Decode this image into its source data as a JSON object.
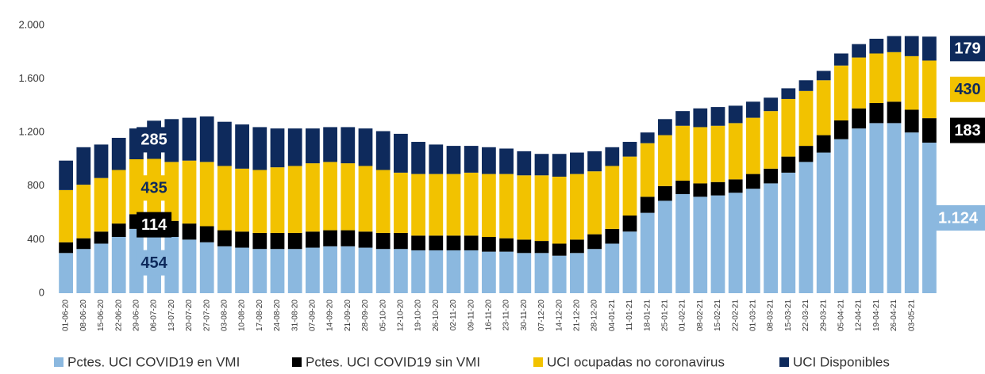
{
  "chart_data": {
    "type": "stacked_bar",
    "categories": [
      "01-06-20",
      "08-06-20",
      "15-06-20",
      "22-06-20",
      "29-06-20",
      "06-07-20",
      "13-07-20",
      "20-07-20",
      "27-07-20",
      "03-08-20",
      "10-08-20",
      "17-08-20",
      "24-08-20",
      "31-08-20",
      "07-09-20",
      "14-09-20",
      "21-09-20",
      "28-09-20",
      "05-10-20",
      "12-10-20",
      "19-10-20",
      "26-10-20",
      "02-11-20",
      "09-11-20",
      "16-11-20",
      "23-11-20",
      "30-11-20",
      "07-12-20",
      "14-12-20",
      "21-12-20",
      "28-12-20",
      "04-01-21",
      "11-01-21",
      "18-01-21",
      "25-01-21",
      "01-02-21",
      "08-02-21",
      "15-02-21",
      "22-02-21",
      "01-03-21",
      "08-03-21",
      "15-03-21",
      "22-03-21",
      "29-03-21",
      "05-04-21",
      "12-04-21",
      "19-04-21",
      "26-04-21",
      "03-05-21",
      null
    ],
    "series": [
      {
        "name": "Pctes. UCI COVID19 en VMI",
        "color": "#8bb8df",
        "values": [
          300,
          330,
          370,
          420,
          480,
          454,
          420,
          400,
          380,
          350,
          340,
          330,
          330,
          330,
          340,
          350,
          350,
          340,
          330,
          330,
          320,
          320,
          320,
          320,
          310,
          310,
          300,
          300,
          280,
          300,
          330,
          370,
          460,
          600,
          690,
          740,
          720,
          730,
          750,
          780,
          820,
          900,
          980,
          1050,
          1150,
          1230,
          1270,
          1270,
          1200,
          1124
        ],
        "value_labels": [
          null,
          null,
          null,
          null,
          null,
          "454",
          null,
          null,
          null,
          null,
          null,
          null,
          null,
          null,
          null,
          null,
          null,
          null,
          null,
          null,
          null,
          null,
          null,
          null,
          null,
          null,
          null,
          null,
          null,
          null,
          null,
          null,
          null,
          null,
          null,
          null,
          null,
          null,
          null,
          null,
          null,
          null,
          null,
          null,
          null,
          null,
          null,
          null,
          null,
          "1.124"
        ]
      },
      {
        "name": "Pctes. UCI COVID19 sin VMI",
        "color": "#000000",
        "values": [
          80,
          80,
          90,
          100,
          110,
          114,
          120,
          120,
          120,
          120,
          120,
          120,
          120,
          120,
          120,
          120,
          120,
          120,
          120,
          120,
          110,
          110,
          110,
          110,
          110,
          100,
          100,
          90,
          90,
          100,
          110,
          110,
          120,
          120,
          110,
          100,
          100,
          100,
          100,
          110,
          110,
          120,
          120,
          130,
          140,
          150,
          150,
          160,
          170,
          183
        ],
        "value_labels": [
          null,
          null,
          null,
          null,
          null,
          "114",
          null,
          null,
          null,
          null,
          null,
          null,
          null,
          null,
          null,
          null,
          null,
          null,
          null,
          null,
          null,
          null,
          null,
          null,
          null,
          null,
          null,
          null,
          null,
          null,
          null,
          null,
          null,
          null,
          null,
          null,
          null,
          null,
          null,
          null,
          null,
          null,
          null,
          null,
          null,
          null,
          null,
          null,
          null,
          "183"
        ]
      },
      {
        "name": "UCI ocupadas no coronavirus",
        "color": "#f2c200",
        "values": [
          390,
          400,
          400,
          400,
          410,
          435,
          440,
          470,
          480,
          480,
          470,
          470,
          490,
          500,
          510,
          510,
          500,
          490,
          470,
          450,
          460,
          460,
          460,
          470,
          470,
          480,
          480,
          490,
          500,
          490,
          470,
          470,
          440,
          400,
          380,
          410,
          420,
          420,
          420,
          420,
          430,
          430,
          410,
          410,
          410,
          380,
          370,
          370,
          400,
          430
        ],
        "value_labels": [
          null,
          null,
          null,
          null,
          null,
          "435",
          null,
          null,
          null,
          null,
          null,
          null,
          null,
          null,
          null,
          null,
          null,
          null,
          null,
          null,
          null,
          null,
          null,
          null,
          null,
          null,
          null,
          null,
          null,
          null,
          null,
          null,
          null,
          null,
          null,
          null,
          null,
          null,
          null,
          null,
          null,
          null,
          null,
          null,
          null,
          null,
          null,
          null,
          null,
          "430"
        ]
      },
      {
        "name": "UCI Disponibles",
        "color": "#0e2a5c",
        "values": [
          220,
          280,
          250,
          240,
          230,
          285,
          320,
          320,
          340,
          330,
          330,
          320,
          290,
          280,
          260,
          260,
          270,
          280,
          290,
          290,
          240,
          220,
          210,
          200,
          200,
          190,
          180,
          160,
          170,
          160,
          150,
          140,
          110,
          80,
          120,
          110,
          140,
          140,
          130,
          120,
          100,
          80,
          80,
          70,
          90,
          100,
          110,
          120,
          150,
          179
        ],
        "value_labels": [
          null,
          null,
          null,
          null,
          null,
          "285",
          null,
          null,
          null,
          null,
          null,
          null,
          null,
          null,
          null,
          null,
          null,
          null,
          null,
          null,
          null,
          null,
          null,
          null,
          null,
          null,
          null,
          null,
          null,
          null,
          null,
          null,
          null,
          null,
          null,
          null,
          null,
          null,
          null,
          null,
          null,
          null,
          null,
          null,
          null,
          null,
          null,
          null,
          null,
          "179"
        ]
      }
    ],
    "ylim": [
      0,
      2000
    ],
    "yticks": [
      0,
      400,
      800,
      {
        "value": 1200,
        "label": "1.200"
      },
      {
        "value": 1600,
        "label": "1.600"
      },
      {
        "value": 2000,
        "label": "2.000"
      }
    ]
  }
}
